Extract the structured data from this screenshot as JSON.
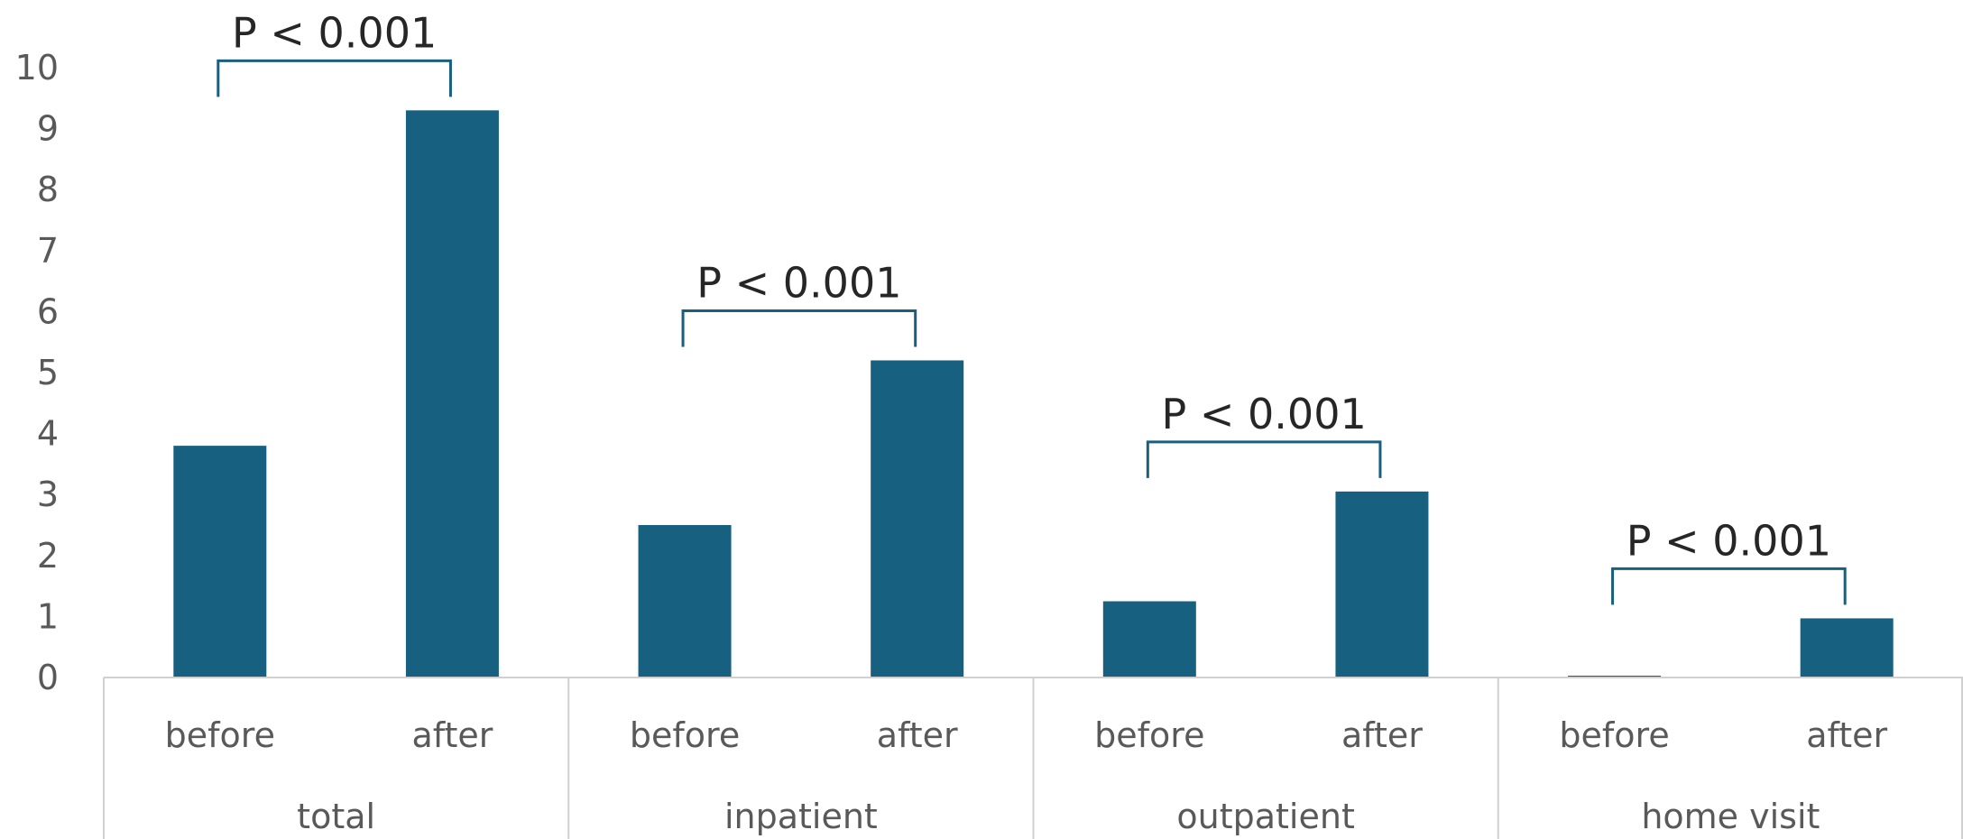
{
  "chart_data": {
    "type": "bar",
    "groups": [
      "total",
      "inpatient",
      "outpatient",
      "home visit"
    ],
    "subcategories": [
      "before",
      "after"
    ],
    "values": [
      [
        3.8,
        9.3
      ],
      [
        2.5,
        5.2
      ],
      [
        1.25,
        3.05
      ],
      [
        0.03,
        0.97
      ]
    ],
    "significance": [
      "P < 0.001",
      "P < 0.001",
      "P < 0.001",
      "P < 0.001"
    ],
    "ylim": [
      0,
      10
    ],
    "yticks": [
      0,
      1,
      2,
      3,
      4,
      5,
      6,
      7,
      8,
      9,
      10
    ],
    "bar_color": "#17607f",
    "bracket_color": "#1a5f7e",
    "axis_color": "#d0d0d0",
    "text_color": "#595959",
    "grid": false,
    "legend": "none"
  }
}
